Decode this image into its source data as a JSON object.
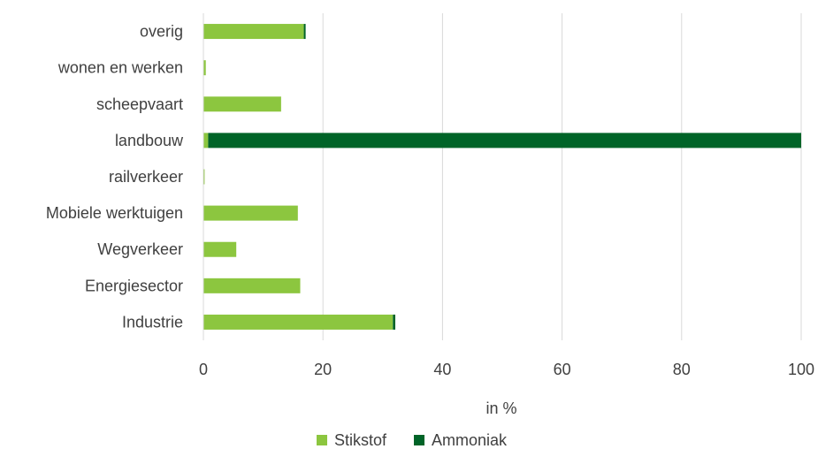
{
  "chart_data": {
    "type": "bar",
    "orientation": "horizontal",
    "stacked": true,
    "categories": [
      "overig",
      "wonen en werken",
      "scheepvaart",
      "landbouw",
      "railverkeer",
      "Mobiele werktuigen",
      "Wegverkeer",
      "Energiesector",
      "Industrie"
    ],
    "series": [
      {
        "name": "Stikstof",
        "color": "#8cc63f",
        "values": [
          16.8,
          0.4,
          13.0,
          0.8,
          0.2,
          15.8,
          5.5,
          16.2,
          31.7
        ]
      },
      {
        "name": "Ammoniak",
        "color": "#006428",
        "values": [
          0.3,
          0.0,
          0.0,
          99.2,
          0.0,
          0.0,
          0.0,
          0.0,
          0.4
        ]
      }
    ],
    "xlabel": "in %",
    "xlim": [
      0,
      100
    ],
    "xticks": [
      0,
      20,
      40,
      60,
      80,
      100
    ],
    "grid": "vertical",
    "legend_position": "bottom"
  }
}
